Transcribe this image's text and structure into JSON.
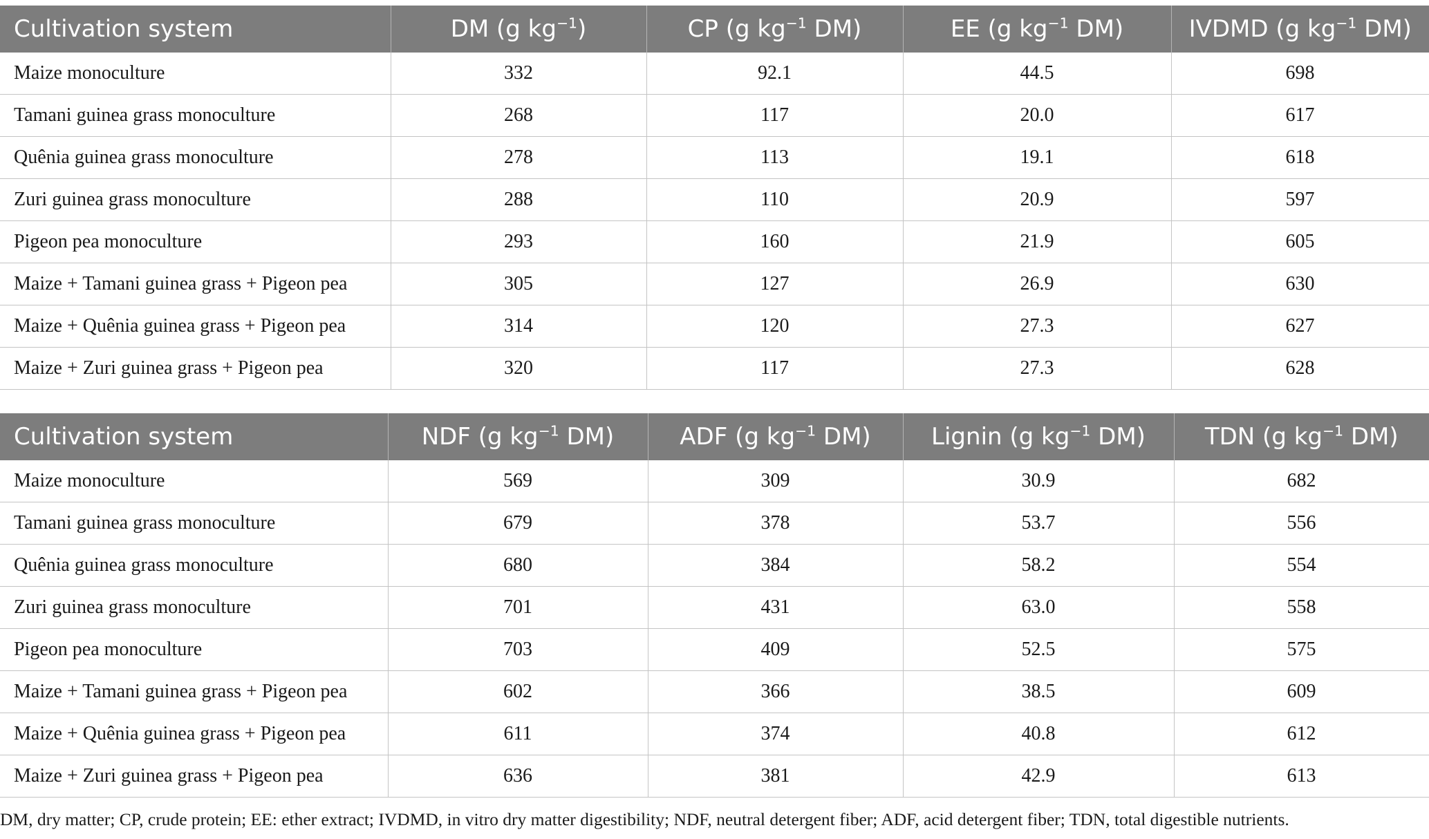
{
  "table1": {
    "headers": [
      "Cultivation system",
      "DM (g kg−1)",
      "CP (g kg−1 DM)",
      "EE (g kg−1 DM)",
      "IVDMD (g kg−1 DM)"
    ],
    "rows": [
      [
        "Maize monoculture",
        "332",
        "92.1",
        "44.5",
        "698"
      ],
      [
        "Tamani guinea grass monoculture",
        "268",
        "117",
        "20.0",
        "617"
      ],
      [
        "Quênia guinea grass monoculture",
        "278",
        "113",
        "19.1",
        "618"
      ],
      [
        "Zuri guinea grass monoculture",
        "288",
        "110",
        "20.9",
        "597"
      ],
      [
        "Pigeon pea monoculture",
        "293",
        "160",
        "21.9",
        "605"
      ],
      [
        "Maize + Tamani guinea grass + Pigeon pea",
        "305",
        "127",
        "26.9",
        "630"
      ],
      [
        "Maize + Quênia guinea grass + Pigeon pea",
        "314",
        "120",
        "27.3",
        "627"
      ],
      [
        "Maize + Zuri guinea grass + Pigeon pea",
        "320",
        "117",
        "27.3",
        "628"
      ]
    ]
  },
  "table2": {
    "headers": [
      "Cultivation system",
      "NDF (g kg−1 DM)",
      "ADF (g kg−1 DM)",
      "Lignin (g kg−1 DM)",
      "TDN (g kg−1 DM)"
    ],
    "rows": [
      [
        "Maize monoculture",
        "569",
        "309",
        "30.9",
        "682"
      ],
      [
        "Tamani guinea grass monoculture",
        "679",
        "378",
        "53.7",
        "556"
      ],
      [
        "Quênia guinea grass monoculture",
        "680",
        "384",
        "58.2",
        "554"
      ],
      [
        "Zuri guinea grass monoculture",
        "701",
        "431",
        "63.0",
        "558"
      ],
      [
        "Pigeon pea monoculture",
        "703",
        "409",
        "52.5",
        "575"
      ],
      [
        "Maize + Tamani guinea grass + Pigeon pea",
        "602",
        "366",
        "38.5",
        "609"
      ],
      [
        "Maize + Quênia guinea grass + Pigeon pea",
        "611",
        "374",
        "40.8",
        "612"
      ],
      [
        "Maize + Zuri guinea grass + Pigeon pea",
        "636",
        "381",
        "42.9",
        "613"
      ]
    ]
  },
  "footnote": "DM, dry matter; CP, crude protein; EE: ether extract; IVDMD, in vitro dry matter digestibility; NDF, neutral detergent fiber; ADF, acid detergent fiber; TDN, total digestible nutrients.",
  "colors": {
    "header_background": "#7d7d7d",
    "header_text": "#ffffff",
    "grid_lines": "#c4c4c4"
  }
}
